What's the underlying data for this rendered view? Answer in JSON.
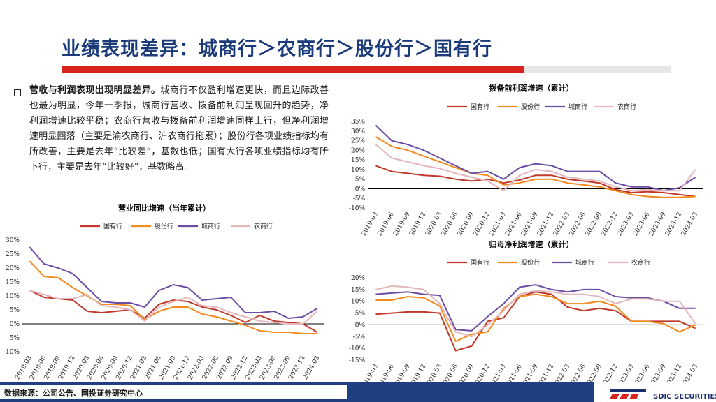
{
  "slide": {
    "title": "业绩表现差异：城商行＞农商行＞股份行＞国有行",
    "bullet_lead": "营收与利润表现出现明显差异。",
    "bullet_body": "城商行不仅盈利增速更快，而且边际改善也最为明显，今年一季报，城商行营收、拨备前利润呈现回升的趋势，净利润增速比较平稳；农商行营收与拨备前利润增速同样上行，但净利润增速明显回落（主要是渝农商行、沪农商行拖累）；股份行各项业绩指标均有所改善，主要是去年“比较差”，基数也低；国有大行各项业绩指标均有所下行，主要是去年“比较好”，基数略高。",
    "source": "数据来源：公司公告、国投证券研究中心",
    "logo_text": "SDIC SECURITIES"
  },
  "colors": {
    "国有行": "#c0392b",
    "股份行": "#f28a1e",
    "城商行": "#6b4ea6",
    "农商行": "#e3b7bb",
    "accent": "#d9231c",
    "navy": "#1f3f80"
  },
  "x_labels": [
    "2019-03",
    "2019-06",
    "2019-09",
    "2019-12",
    "2020-03",
    "2020-06",
    "2020-09",
    "2020-12",
    "2021-03",
    "2021-06",
    "2021-09",
    "2021-12",
    "2022-03",
    "2022-06",
    "2022-09",
    "2022-12",
    "2023-03",
    "2023-06",
    "2023-09",
    "2023-12",
    "2024-03"
  ],
  "chart_data": [
    {
      "type": "line",
      "title": "营业同比增速（当年累计）",
      "ylim": [
        -10,
        30
      ],
      "yticks": [
        "30%",
        "25%",
        "20%",
        "15%",
        "10%",
        "5%",
        "0%",
        "-5%",
        "-10%"
      ],
      "series": [
        {
          "name": "国有行",
          "values": [
            12,
            9.5,
            9,
            8.5,
            4.5,
            4,
            4.5,
            5,
            2,
            7,
            8.5,
            8,
            6,
            5,
            3,
            0.5,
            3,
            1,
            0.5,
            0,
            -3
          ]
        },
        {
          "name": "股份行",
          "values": [
            22.5,
            17,
            16.5,
            13,
            10,
            7,
            7,
            6.5,
            1.5,
            4.5,
            6,
            6,
            3.5,
            2.5,
            1,
            -0.5,
            -2.5,
            -3,
            -3,
            -3.5,
            -3.5
          ]
        },
        {
          "name": "城商行",
          "values": [
            27.5,
            21.5,
            20,
            18,
            13,
            8,
            7.5,
            7.5,
            6,
            12,
            14,
            13,
            8.5,
            9,
            9.5,
            4,
            4,
            4.5,
            2,
            2.5,
            5.5
          ]
        },
        {
          "name": "农商行",
          "values": [
            12,
            10.5,
            9,
            9,
            10.5,
            6.5,
            6,
            5,
            1,
            6,
            8,
            9.5,
            6.5,
            6,
            4,
            2.5,
            1,
            0.5,
            0,
            0,
            4.5
          ]
        }
      ]
    },
    {
      "type": "line",
      "title": "拨备前利润增速（累计）",
      "ylim": [
        -10,
        35
      ],
      "yticks": [
        "35%",
        "30%",
        "25%",
        "20%",
        "15%",
        "10%",
        "5%",
        "0%",
        "-5%",
        "-10%"
      ],
      "series": [
        {
          "name": "国有行",
          "values": [
            12,
            9,
            8,
            7,
            6.5,
            5,
            4,
            5,
            3,
            4.5,
            7,
            7,
            5,
            4,
            3,
            -0.5,
            -2,
            -1.5,
            -2,
            -3,
            -4
          ]
        },
        {
          "name": "股份行",
          "values": [
            27,
            22,
            20,
            17,
            14,
            11,
            8,
            7,
            2,
            3,
            5,
            5,
            3,
            2,
            1,
            -1,
            -3,
            -4,
            -4.5,
            -4.5,
            -4
          ]
        },
        {
          "name": "城商行",
          "values": [
            33,
            25,
            23,
            20,
            16,
            12,
            8,
            9,
            5,
            11,
            13,
            12,
            9,
            9,
            9,
            3,
            1,
            1,
            -1,
            0.5,
            6
          ]
        },
        {
          "name": "农商行",
          "values": [
            23,
            16,
            14,
            12,
            10.5,
            8,
            6,
            4,
            -1,
            7,
            10,
            9,
            6,
            5,
            4,
            1,
            -1,
            -0.5,
            -1,
            -1,
            10
          ]
        }
      ]
    },
    {
      "type": "line",
      "title": "归母净利润增速（累计）",
      "ylim": [
        -15,
        20
      ],
      "yticks": [
        "20%",
        "15%",
        "10%",
        "5%",
        "0%",
        "-5%",
        "-10%",
        "-15%"
      ],
      "series": [
        {
          "name": "国有行",
          "values": [
            4.5,
            5,
            5.5,
            5.5,
            5,
            -11,
            -9,
            1.5,
            3,
            12,
            14,
            13,
            7.5,
            6,
            7,
            6,
            1.5,
            1.5,
            1.5,
            1.5,
            -1.5
          ]
        },
        {
          "name": "股份行",
          "values": [
            10.5,
            10.5,
            12,
            11.5,
            8,
            -7,
            -4,
            -3,
            7,
            12,
            13,
            12,
            9,
            9,
            10,
            8,
            1.5,
            1.5,
            0.5,
            -3,
            0
          ]
        },
        {
          "name": "城商行",
          "values": [
            13,
            13.5,
            14,
            13,
            12.5,
            -2,
            -2.5,
            3.5,
            9,
            16,
            17,
            15,
            14,
            15,
            15,
            12,
            11.5,
            11.5,
            10,
            7,
            7
          ]
        },
        {
          "name": "农商行",
          "values": [
            15,
            16.5,
            16,
            15,
            9,
            -3,
            -5,
            0,
            6,
            13,
            14.5,
            14,
            13,
            13,
            12,
            9,
            11,
            11,
            10,
            10,
            0.5
          ]
        }
      ]
    }
  ]
}
